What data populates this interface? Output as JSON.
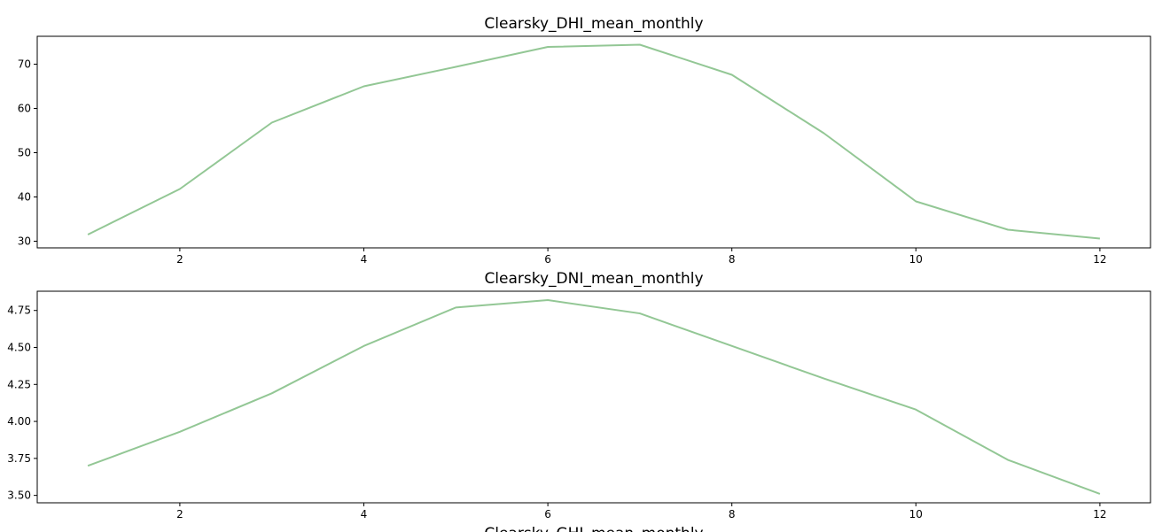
{
  "chart_data": [
    {
      "type": "line",
      "title": "Clearsky_DHI_mean_monthly",
      "xlabel": "",
      "ylabel": "",
      "x": [
        1,
        2,
        3,
        4,
        5,
        6,
        7,
        8,
        9,
        10,
        11,
        12
      ],
      "series": [
        {
          "name": "Clearsky_DHI_mean_monthly",
          "values": [
            31.5,
            41.8,
            56.8,
            65.0,
            69.4,
            73.9,
            74.4,
            67.6,
            54.4,
            39.0,
            32.6,
            30.6
          ]
        }
      ],
      "xlim": [
        0.45,
        12.55
      ],
      "ylim": [
        28.5,
        76.3
      ],
      "xticks": [
        2,
        4,
        6,
        8,
        10,
        12
      ],
      "xtick_labels": [
        "2",
        "4",
        "6",
        "8",
        "10",
        "12"
      ],
      "yticks": [
        30,
        40,
        50,
        60,
        70
      ],
      "ytick_labels": [
        "30",
        "40",
        "50",
        "60",
        "70"
      ],
      "color": "#93c795",
      "grid": false
    },
    {
      "type": "line",
      "title": "Clearsky_DNI_mean_monthly",
      "xlabel": "",
      "ylabel": "",
      "x": [
        1,
        2,
        3,
        4,
        5,
        6,
        7,
        8,
        9,
        10,
        11,
        12
      ],
      "series": [
        {
          "name": "Clearsky_DNI_mean_monthly",
          "values": [
            3.7,
            3.93,
            4.19,
            4.51,
            4.77,
            4.82,
            4.73,
            4.51,
            4.29,
            4.08,
            3.74,
            3.51
          ]
        }
      ],
      "xlim": [
        0.45,
        12.55
      ],
      "ylim": [
        3.45,
        4.88
      ],
      "xticks": [
        2,
        4,
        6,
        8,
        10,
        12
      ],
      "xtick_labels": [
        "2",
        "4",
        "6",
        "8",
        "10",
        "12"
      ],
      "yticks": [
        3.5,
        3.75,
        4.0,
        4.25,
        4.5,
        4.75
      ],
      "ytick_labels": [
        "3.50",
        "3.75",
        "4.00",
        "4.25",
        "4.50",
        "4.75"
      ],
      "color": "#93c795",
      "grid": false
    },
    {
      "type": "line",
      "title": "Clearsky_GHI_mean_monthly"
    }
  ]
}
